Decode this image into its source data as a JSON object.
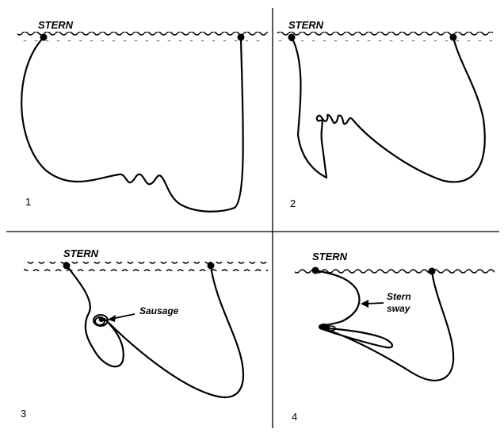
{
  "panels": [
    {
      "number": "1",
      "stern_label": "STERN"
    },
    {
      "number": "2",
      "stern_label": "STERN"
    },
    {
      "number": "3",
      "stern_label": "STERN",
      "annotation": "Sausage"
    },
    {
      "number": "4",
      "stern_label": "STERN",
      "annotation_line1": "Stern",
      "annotation_line2": "sway"
    }
  ]
}
